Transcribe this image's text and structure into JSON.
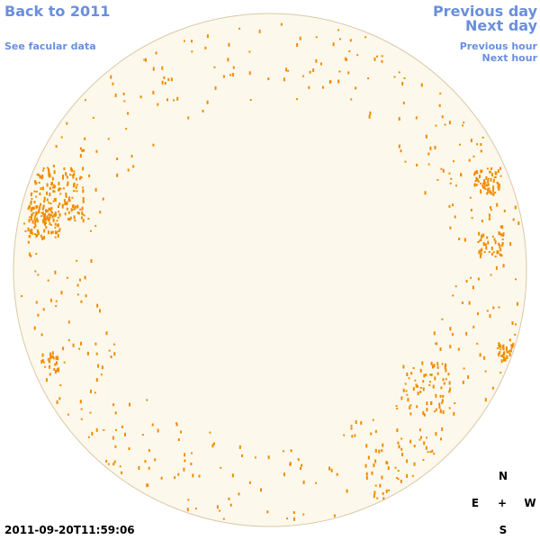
{
  "nav": {
    "back_year": "Back to 2011",
    "facular_link": "See facular data",
    "previous_day": "Previous day",
    "next_day": "Next day",
    "previous_hour": "Previous hour",
    "next_hour": "Next hour"
  },
  "timestamp": "2011-09-20T11:59:06",
  "compass": {
    "north": "N",
    "east": "E",
    "center": "+",
    "west": "W",
    "south": "S"
  }
}
